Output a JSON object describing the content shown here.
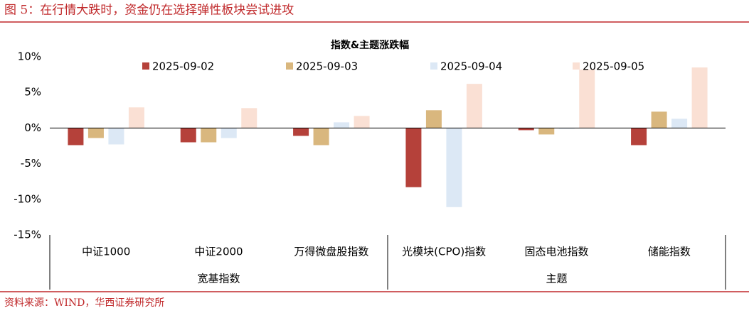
{
  "header": {
    "title": "图 5：在行情大跌时，资金仍在选择弹性板块尝试进攻"
  },
  "footer": {
    "source": "资料来源：WIND，华西证券研究所"
  },
  "chart_data": {
    "type": "bar",
    "title": "指数&主题涨跌幅",
    "categories": [
      "中证1000",
      "中证2000",
      "万得微盘股指数",
      "光模块(CPO)指数",
      "固态电池指数",
      "储能指数"
    ],
    "groups": [
      "宽基指数",
      "主题"
    ],
    "series": [
      {
        "name": "2025-09-02",
        "color": "#b5413a",
        "values": [
          -2.4,
          -2.0,
          -1.1,
          -8.3,
          -0.3,
          -2.4
        ]
      },
      {
        "name": "2025-09-03",
        "color": "#d9b77e",
        "values": [
          -1.4,
          -2.0,
          -2.4,
          2.5,
          -0.9,
          2.3
        ]
      },
      {
        "name": "2025-09-04",
        "color": "#dce8f5",
        "values": [
          -2.3,
          -1.4,
          0.8,
          -11.1,
          -0.1,
          1.3
        ]
      },
      {
        "name": "2025-09-05",
        "color": "#fae0d4",
        "values": [
          2.9,
          2.8,
          1.7,
          6.2,
          8.2,
          8.5
        ]
      }
    ],
    "ylim": [
      -15,
      10
    ],
    "yticks": [
      {
        "value": -15,
        "label": "-15%"
      },
      {
        "value": -10,
        "label": "-10%"
      },
      {
        "value": -5,
        "label": "-5%"
      },
      {
        "value": 0,
        "label": "0%"
      },
      {
        "value": 5,
        "label": "5%"
      },
      {
        "value": 10,
        "label": "10%"
      }
    ],
    "legend": "top"
  }
}
